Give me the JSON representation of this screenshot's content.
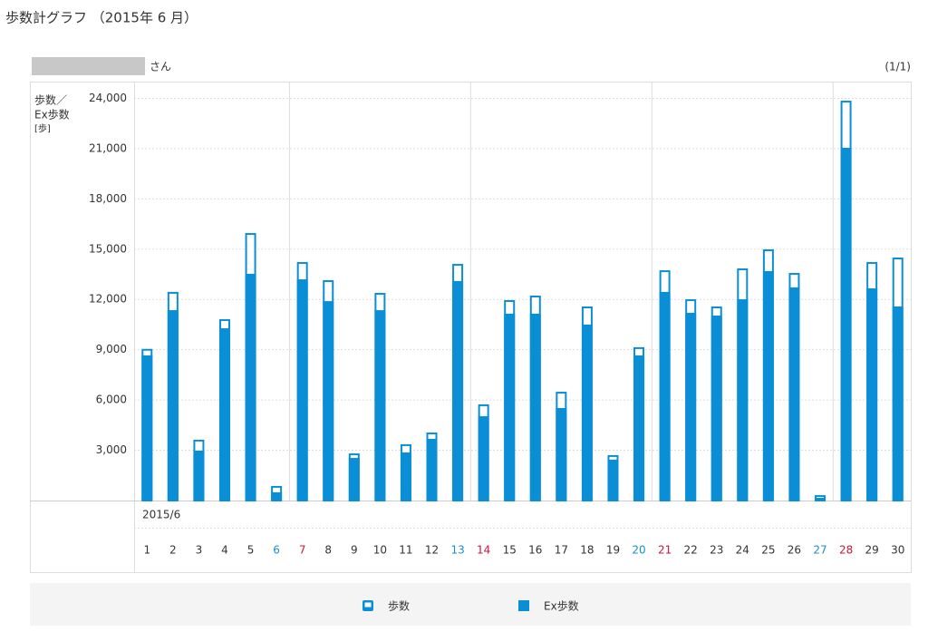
{
  "page": {
    "title": "歩数計グラフ （2015年 6 月）",
    "user_suffix": "さん",
    "page_indicator": "(1/1)"
  },
  "chart_data": {
    "type": "bar",
    "ylabel": [
      "歩数／",
      "Ex歩数",
      "[歩]"
    ],
    "xlabel": "2015/6",
    "categories": [
      "1",
      "2",
      "3",
      "4",
      "5",
      "6",
      "7",
      "8",
      "9",
      "10",
      "11",
      "12",
      "13",
      "14",
      "15",
      "16",
      "17",
      "18",
      "19",
      "20",
      "21",
      "22",
      "23",
      "24",
      "25",
      "26",
      "27",
      "28",
      "29",
      "30"
    ],
    "category_colors": [
      "#333",
      "#333",
      "#333",
      "#333",
      "#333",
      "#1a8fc9",
      "#c8173c",
      "#333",
      "#333",
      "#333",
      "#333",
      "#333",
      "#1a8fc9",
      "#c8173c",
      "#333",
      "#333",
      "#333",
      "#333",
      "#333",
      "#1a8fc9",
      "#c8173c",
      "#333",
      "#333",
      "#333",
      "#333",
      "#333",
      "#1a8fc9",
      "#c8173c",
      "#333",
      "#333"
    ],
    "series": [
      {
        "name": "歩数",
        "color": "#0a8fd6",
        "outline": true,
        "values": [
          9050,
          12450,
          3630,
          10820,
          15960,
          870,
          14230,
          13150,
          2810,
          12390,
          3360,
          4060,
          14120,
          5740,
          11960,
          12230,
          6490,
          11580,
          2710,
          9150,
          13740,
          12010,
          11580,
          13850,
          14990,
          13580,
          320,
          23860,
          14230,
          14500
        ]
      },
      {
        "name": "Ex歩数",
        "color": "#0a8fd6",
        "outline": false,
        "values": [
          8660,
          11360,
          2980,
          10280,
          13530,
          490,
          13200,
          11900,
          2540,
          11360,
          2870,
          3680,
          13100,
          5030,
          11150,
          11150,
          5520,
          10500,
          2440,
          8660,
          12450,
          11200,
          11040,
          12010,
          13690,
          12720,
          160,
          21050,
          12660,
          11580
        ]
      }
    ],
    "ylim": [
      0,
      25000
    ],
    "yticks": [
      {
        "value": 3000,
        "label": "3,000"
      },
      {
        "value": 6000,
        "label": "6,000"
      },
      {
        "value": 9000,
        "label": "9,000"
      },
      {
        "value": 12000,
        "label": "12,000"
      },
      {
        "value": 15000,
        "label": "15,000"
      },
      {
        "value": 18000,
        "label": "18,000"
      },
      {
        "value": 21000,
        "label": "21,000"
      },
      {
        "value": 24000,
        "label": "24,000"
      }
    ],
    "grid": true
  }
}
